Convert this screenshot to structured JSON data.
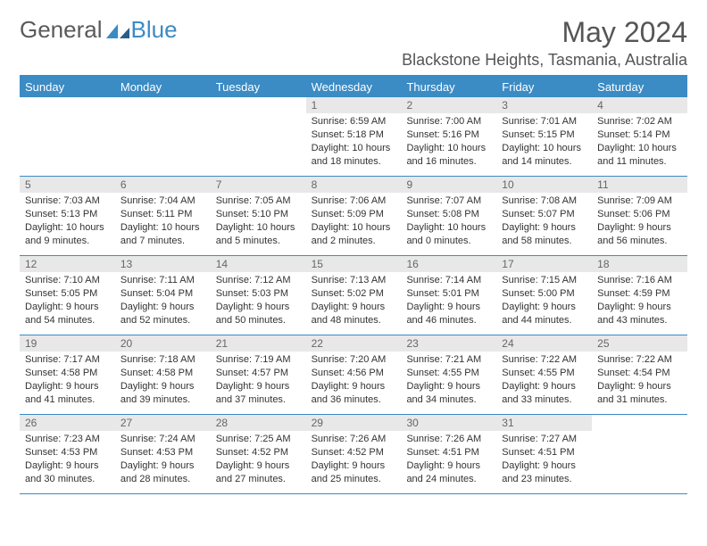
{
  "brand": {
    "text1": "General",
    "text2": "Blue"
  },
  "title": "May 2024",
  "location": "Blackstone Heights, Tasmania, Australia",
  "colors": {
    "accent": "#3b8bc4",
    "header_text": "#ffffff",
    "daynum_bg": "#e8e8e8",
    "body_text": "#333333",
    "title_text": "#555555"
  },
  "day_names": [
    "Sunday",
    "Monday",
    "Tuesday",
    "Wednesday",
    "Thursday",
    "Friday",
    "Saturday"
  ],
  "weeks": [
    [
      {
        "n": "",
        "sr": "",
        "ss": "",
        "dl": ""
      },
      {
        "n": "",
        "sr": "",
        "ss": "",
        "dl": ""
      },
      {
        "n": "",
        "sr": "",
        "ss": "",
        "dl": ""
      },
      {
        "n": "1",
        "sr": "Sunrise: 6:59 AM",
        "ss": "Sunset: 5:18 PM",
        "dl": "Daylight: 10 hours and 18 minutes."
      },
      {
        "n": "2",
        "sr": "Sunrise: 7:00 AM",
        "ss": "Sunset: 5:16 PM",
        "dl": "Daylight: 10 hours and 16 minutes."
      },
      {
        "n": "3",
        "sr": "Sunrise: 7:01 AM",
        "ss": "Sunset: 5:15 PM",
        "dl": "Daylight: 10 hours and 14 minutes."
      },
      {
        "n": "4",
        "sr": "Sunrise: 7:02 AM",
        "ss": "Sunset: 5:14 PM",
        "dl": "Daylight: 10 hours and 11 minutes."
      }
    ],
    [
      {
        "n": "5",
        "sr": "Sunrise: 7:03 AM",
        "ss": "Sunset: 5:13 PM",
        "dl": "Daylight: 10 hours and 9 minutes."
      },
      {
        "n": "6",
        "sr": "Sunrise: 7:04 AM",
        "ss": "Sunset: 5:11 PM",
        "dl": "Daylight: 10 hours and 7 minutes."
      },
      {
        "n": "7",
        "sr": "Sunrise: 7:05 AM",
        "ss": "Sunset: 5:10 PM",
        "dl": "Daylight: 10 hours and 5 minutes."
      },
      {
        "n": "8",
        "sr": "Sunrise: 7:06 AM",
        "ss": "Sunset: 5:09 PM",
        "dl": "Daylight: 10 hours and 2 minutes."
      },
      {
        "n": "9",
        "sr": "Sunrise: 7:07 AM",
        "ss": "Sunset: 5:08 PM",
        "dl": "Daylight: 10 hours and 0 minutes."
      },
      {
        "n": "10",
        "sr": "Sunrise: 7:08 AM",
        "ss": "Sunset: 5:07 PM",
        "dl": "Daylight: 9 hours and 58 minutes."
      },
      {
        "n": "11",
        "sr": "Sunrise: 7:09 AM",
        "ss": "Sunset: 5:06 PM",
        "dl": "Daylight: 9 hours and 56 minutes."
      }
    ],
    [
      {
        "n": "12",
        "sr": "Sunrise: 7:10 AM",
        "ss": "Sunset: 5:05 PM",
        "dl": "Daylight: 9 hours and 54 minutes."
      },
      {
        "n": "13",
        "sr": "Sunrise: 7:11 AM",
        "ss": "Sunset: 5:04 PM",
        "dl": "Daylight: 9 hours and 52 minutes."
      },
      {
        "n": "14",
        "sr": "Sunrise: 7:12 AM",
        "ss": "Sunset: 5:03 PM",
        "dl": "Daylight: 9 hours and 50 minutes."
      },
      {
        "n": "15",
        "sr": "Sunrise: 7:13 AM",
        "ss": "Sunset: 5:02 PM",
        "dl": "Daylight: 9 hours and 48 minutes."
      },
      {
        "n": "16",
        "sr": "Sunrise: 7:14 AM",
        "ss": "Sunset: 5:01 PM",
        "dl": "Daylight: 9 hours and 46 minutes."
      },
      {
        "n": "17",
        "sr": "Sunrise: 7:15 AM",
        "ss": "Sunset: 5:00 PM",
        "dl": "Daylight: 9 hours and 44 minutes."
      },
      {
        "n": "18",
        "sr": "Sunrise: 7:16 AM",
        "ss": "Sunset: 4:59 PM",
        "dl": "Daylight: 9 hours and 43 minutes."
      }
    ],
    [
      {
        "n": "19",
        "sr": "Sunrise: 7:17 AM",
        "ss": "Sunset: 4:58 PM",
        "dl": "Daylight: 9 hours and 41 minutes."
      },
      {
        "n": "20",
        "sr": "Sunrise: 7:18 AM",
        "ss": "Sunset: 4:58 PM",
        "dl": "Daylight: 9 hours and 39 minutes."
      },
      {
        "n": "21",
        "sr": "Sunrise: 7:19 AM",
        "ss": "Sunset: 4:57 PM",
        "dl": "Daylight: 9 hours and 37 minutes."
      },
      {
        "n": "22",
        "sr": "Sunrise: 7:20 AM",
        "ss": "Sunset: 4:56 PM",
        "dl": "Daylight: 9 hours and 36 minutes."
      },
      {
        "n": "23",
        "sr": "Sunrise: 7:21 AM",
        "ss": "Sunset: 4:55 PM",
        "dl": "Daylight: 9 hours and 34 minutes."
      },
      {
        "n": "24",
        "sr": "Sunrise: 7:22 AM",
        "ss": "Sunset: 4:55 PM",
        "dl": "Daylight: 9 hours and 33 minutes."
      },
      {
        "n": "25",
        "sr": "Sunrise: 7:22 AM",
        "ss": "Sunset: 4:54 PM",
        "dl": "Daylight: 9 hours and 31 minutes."
      }
    ],
    [
      {
        "n": "26",
        "sr": "Sunrise: 7:23 AM",
        "ss": "Sunset: 4:53 PM",
        "dl": "Daylight: 9 hours and 30 minutes."
      },
      {
        "n": "27",
        "sr": "Sunrise: 7:24 AM",
        "ss": "Sunset: 4:53 PM",
        "dl": "Daylight: 9 hours and 28 minutes."
      },
      {
        "n": "28",
        "sr": "Sunrise: 7:25 AM",
        "ss": "Sunset: 4:52 PM",
        "dl": "Daylight: 9 hours and 27 minutes."
      },
      {
        "n": "29",
        "sr": "Sunrise: 7:26 AM",
        "ss": "Sunset: 4:52 PM",
        "dl": "Daylight: 9 hours and 25 minutes."
      },
      {
        "n": "30",
        "sr": "Sunrise: 7:26 AM",
        "ss": "Sunset: 4:51 PM",
        "dl": "Daylight: 9 hours and 24 minutes."
      },
      {
        "n": "31",
        "sr": "Sunrise: 7:27 AM",
        "ss": "Sunset: 4:51 PM",
        "dl": "Daylight: 9 hours and 23 minutes."
      },
      {
        "n": "",
        "sr": "",
        "ss": "",
        "dl": ""
      }
    ]
  ]
}
